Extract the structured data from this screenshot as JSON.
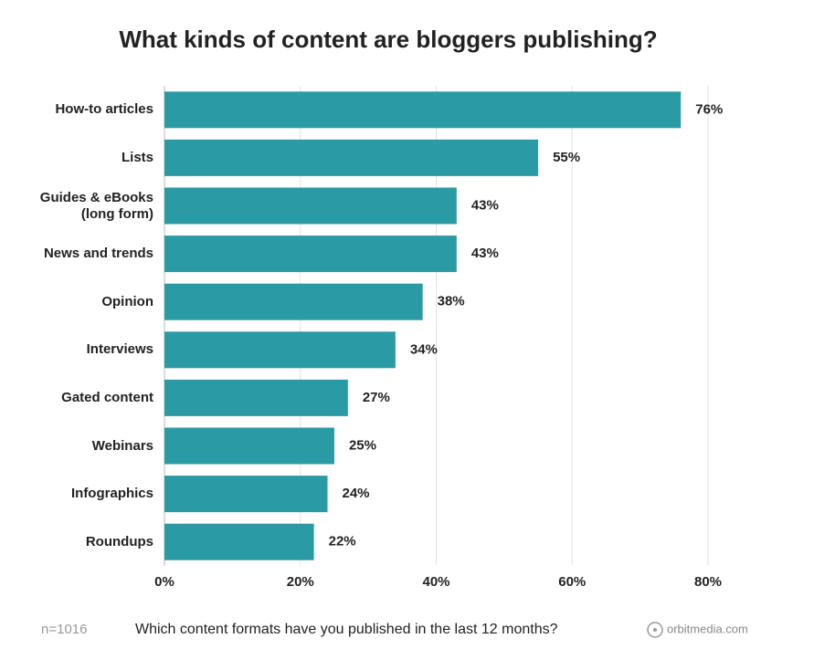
{
  "chart_data": {
    "type": "bar",
    "orientation": "horizontal",
    "title": "What kinds of content are bloggers publishing?",
    "categories": [
      "How-to articles",
      "Lists",
      "Guides & eBooks (long form)",
      "News and trends",
      "Opinion",
      "Interviews",
      "Gated content",
      "Webinars",
      "Infographics",
      "Roundups"
    ],
    "values": [
      76,
      55,
      43,
      43,
      38,
      34,
      27,
      25,
      24,
      22
    ],
    "value_labels": [
      "76%",
      "55%",
      "43%",
      "43%",
      "38%",
      "34%",
      "27%",
      "25%",
      "24%",
      "22%"
    ],
    "color": "#2a9ba5",
    "xlim": [
      0,
      80
    ],
    "xticks": [
      {
        "value": 0,
        "label": "0%"
      },
      {
        "value": 20,
        "label": "20%"
      },
      {
        "value": 40,
        "label": "40%"
      },
      {
        "value": 60,
        "label": "60%"
      },
      {
        "value": 80,
        "label": "80%"
      }
    ],
    "grid": true,
    "sample": "n=1016",
    "question": "Which content formats have you published in the last 12 months?",
    "source": "orbitmedia.com"
  }
}
